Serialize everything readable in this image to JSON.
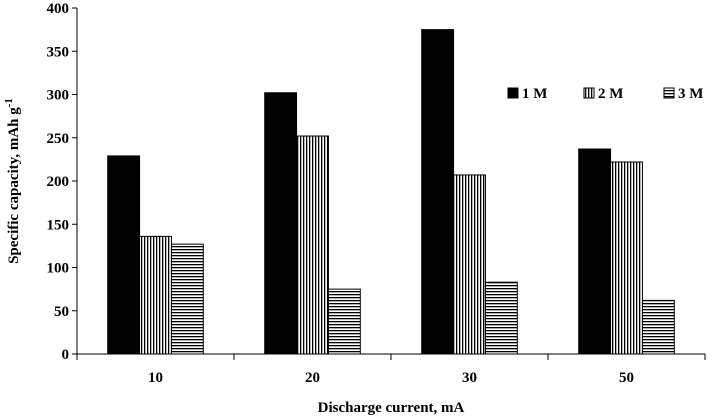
{
  "chart_data": {
    "type": "bar",
    "categories": [
      "10",
      "20",
      "30",
      "50"
    ],
    "series": [
      {
        "name": "1 M",
        "values": [
          229,
          302,
          375,
          237
        ],
        "fill": "solid-black"
      },
      {
        "name": "2 M",
        "values": [
          136,
          252,
          207,
          222
        ],
        "fill": "vertical-stripes"
      },
      {
        "name": "3 M",
        "values": [
          127,
          75,
          83,
          62
        ],
        "fill": "horizontal-stripes"
      }
    ],
    "xlabel": "Discharge current,  mA",
    "ylabel": "Specific capacity,  mAh g",
    "ylabel_superscript": "-1",
    "ylim": [
      0,
      400
    ],
    "yticks": [
      "0",
      "50",
      "100",
      "150",
      "200",
      "250",
      "300",
      "350",
      "400"
    ],
    "grid": false,
    "legend_position": "right",
    "colors": {
      "bar": "#000000",
      "background": "#ffffff"
    }
  }
}
